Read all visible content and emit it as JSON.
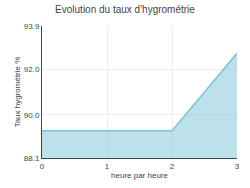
{
  "chart_data": {
    "type": "area",
    "title": "Evolution du taux d'hygrométrie",
    "x_label": "heure par heure",
    "y_label": "Taux hygrométrie %",
    "x": [
      0,
      2,
      3
    ],
    "values": [
      89.3,
      89.3,
      92.7
    ],
    "color": "#7bc4d8",
    "xlim": [
      0,
      3
    ],
    "xticks": [
      0,
      1,
      2,
      3
    ],
    "ylim": [
      88.1,
      93.9
    ],
    "yticks": [
      88.1,
      {
        "value": 90.0,
        "label": "90.0"
      },
      {
        "value": 92.0,
        "label": "92.0"
      },
      93.9
    ],
    "grid": true
  }
}
